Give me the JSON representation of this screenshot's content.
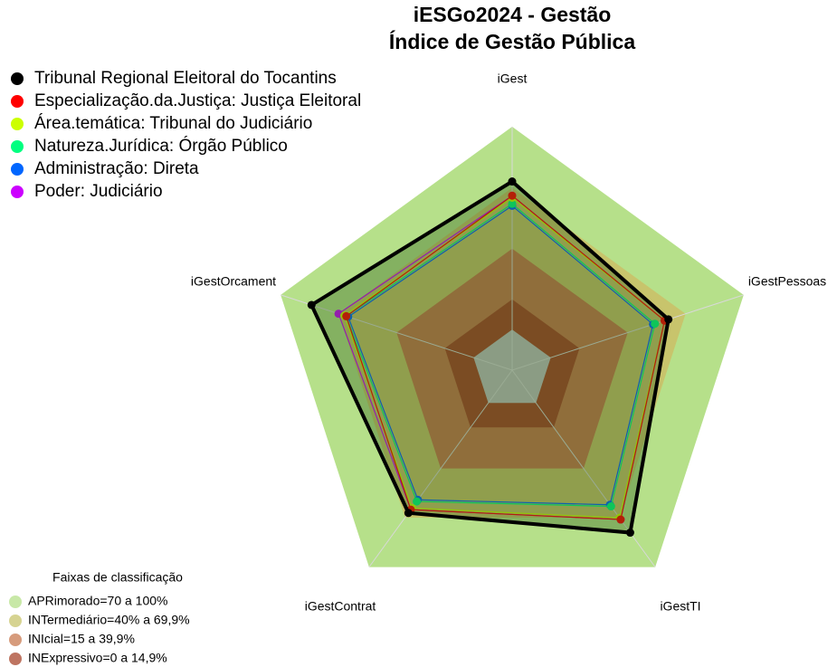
{
  "chart_data": {
    "type": "radar",
    "title": "iESGo2024 - Gestão",
    "subtitle": "Índice de Gestão Pública",
    "categories": [
      "iGest",
      "iGestPessoas",
      "iGestTI",
      "iGestContrat",
      "iGestOrcament"
    ],
    "ylim": [
      -20,
      100
    ],
    "series": [
      {
        "name": "Tribunal Regional Eleitoral do Tocantins",
        "color": "#000000",
        "values": [
          73,
          61,
          79,
          67,
          84
        ]
      },
      {
        "name": "Especialização.da.Justiça: Justiça Eleitoral",
        "color": "#ff0000",
        "values": [
          66,
          59,
          71,
          65,
          66
        ]
      },
      {
        "name": "Área.temática: Tribunal do Judiciário",
        "color": "#ccff00",
        "values": [
          65,
          59,
          70,
          64,
          67
        ]
      },
      {
        "name": "Natureza.Jurídica: Órgão Público",
        "color": "#00ff80",
        "values": [
          62,
          54,
          63,
          60,
          66
        ]
      },
      {
        "name": "Administração: Direta",
        "color": "#0066ff",
        "values": [
          61,
          53,
          62,
          59,
          65
        ]
      },
      {
        "name": "Poder: Judiciário",
        "color": "#cc00ff",
        "values": [
          66,
          59,
          71,
          65,
          70
        ]
      }
    ],
    "bands_title": "Faixas de classificação",
    "bands": [
      {
        "label": "APRimorado=70 a 100%",
        "min": 70,
        "max": 100,
        "color": "#b6e08a"
      },
      {
        "label": "INTermediário=40% a 69,9%",
        "min": 40,
        "max": 69.9,
        "color": "#c8c46c"
      },
      {
        "label": "INIcial=15 a 39,9%",
        "min": 15,
        "max": 39.9,
        "color": "#c87a50"
      },
      {
        "label": "INExpressivo=0 a 14,9%",
        "min": 0,
        "max": 14.9,
        "color": "#a8462c"
      }
    ]
  }
}
